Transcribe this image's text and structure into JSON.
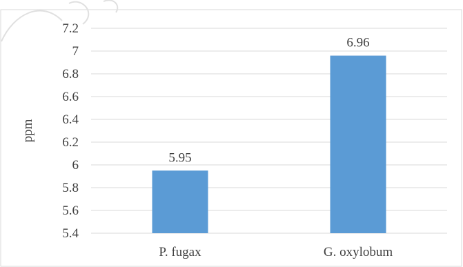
{
  "chart_data": {
    "type": "bar",
    "categories": [
      "P. fugax",
      "G. oxylobum"
    ],
    "values": [
      5.95,
      6.96
    ],
    "data_labels": [
      "5.95",
      "6.96"
    ],
    "title": "",
    "xlabel": "",
    "ylabel": "ppm",
    "ylim": [
      5.4,
      7.2
    ],
    "yticks": [
      5.4,
      5.6,
      5.8,
      6,
      6.2,
      6.4,
      6.6,
      6.8,
      7,
      7.2
    ],
    "ytick_labels": [
      "5.4",
      "5.6",
      "5.8",
      "6",
      "6.2",
      "6.4",
      "6.6",
      "6.8",
      "7",
      "7.2"
    ],
    "grid": true,
    "legend": "none",
    "bar_color": "#5b9bd5",
    "grid_color": "#d9d9d9",
    "text_color": "#404040"
  }
}
